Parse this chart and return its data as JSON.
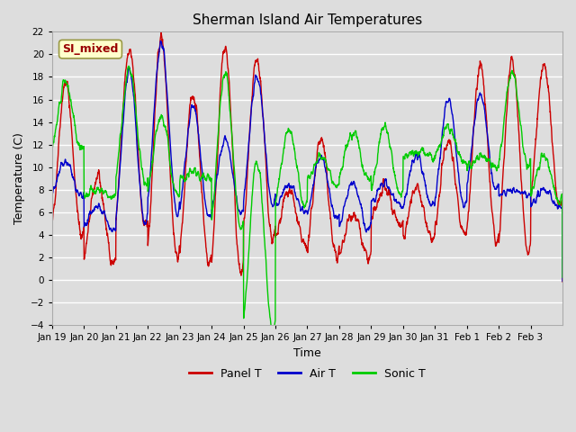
{
  "title": "Sherman Island Air Temperatures",
  "xlabel": "Time",
  "ylabel": "Temperature (C)",
  "ylim": [
    -4,
    22
  ],
  "yticks": [
    -4,
    -2,
    0,
    2,
    4,
    6,
    8,
    10,
    12,
    14,
    16,
    18,
    20,
    22
  ],
  "xtick_labels": [
    "Jan 19",
    "Jan 20",
    "Jan 21",
    "Jan 22",
    "Jan 23",
    "Jan 24",
    "Jan 25",
    "Jan 26",
    "Jan 27",
    "Jan 28",
    "Jan 29",
    "Jan 30",
    "Jan 31",
    "Feb 1",
    "Feb 2",
    "Feb 3"
  ],
  "panel_t_color": "#cc0000",
  "air_t_color": "#0000cc",
  "sonic_t_color": "#00cc00",
  "legend_label_panel": "Panel T",
  "legend_label_air": "Air T",
  "legend_label_sonic": "Sonic T",
  "annotation_text": "SI_mixed",
  "annotation_bg": "#ffffcc",
  "annotation_fg": "#990000",
  "bg_color": "#dddddd",
  "plot_bg": "#dddddd",
  "linewidth": 1.0,
  "grid_color": "#ffffff",
  "seed": 42,
  "n_days": 16,
  "day_peaks_panel": [
    17.5,
    9.0,
    20.5,
    21.5,
    16.5,
    20.5,
    19.5,
    8.0,
    12.5,
    6.0,
    8.0,
    8.0,
    12.5,
    19.0,
    19.5,
    19.0
  ],
  "day_mins_panel": [
    4.0,
    1.5,
    4.5,
    2.0,
    1.5,
    0.5,
    3.5,
    3.0,
    2.0,
    1.8,
    5.0,
    3.5,
    4.0,
    3.5,
    2.5,
    6.5
  ],
  "day_peaks_air": [
    10.5,
    6.5,
    18.5,
    21.0,
    15.5,
    12.5,
    18.0,
    8.5,
    11.0,
    8.5,
    8.5,
    11.0,
    16.0,
    16.5,
    8.0,
    8.0
  ],
  "day_mins_air": [
    7.5,
    4.5,
    5.0,
    6.0,
    5.5,
    6.0,
    6.5,
    6.0,
    5.5,
    4.5,
    6.5,
    6.5,
    6.5,
    8.0,
    7.5,
    6.5
  ],
  "day_peaks_sonic": [
    17.5,
    8.0,
    18.5,
    14.5,
    9.5,
    18.5,
    10.5,
    13.5,
    11.0,
    13.0,
    13.5,
    11.5,
    13.5,
    11.0,
    18.5,
    11.0
  ],
  "day_mins_sonic": [
    11.5,
    7.5,
    8.5,
    7.5,
    9.0,
    4.5,
    -4.5,
    6.5,
    8.5,
    9.0,
    7.5,
    11.0,
    10.5,
    10.0,
    10.0,
    7.0
  ]
}
